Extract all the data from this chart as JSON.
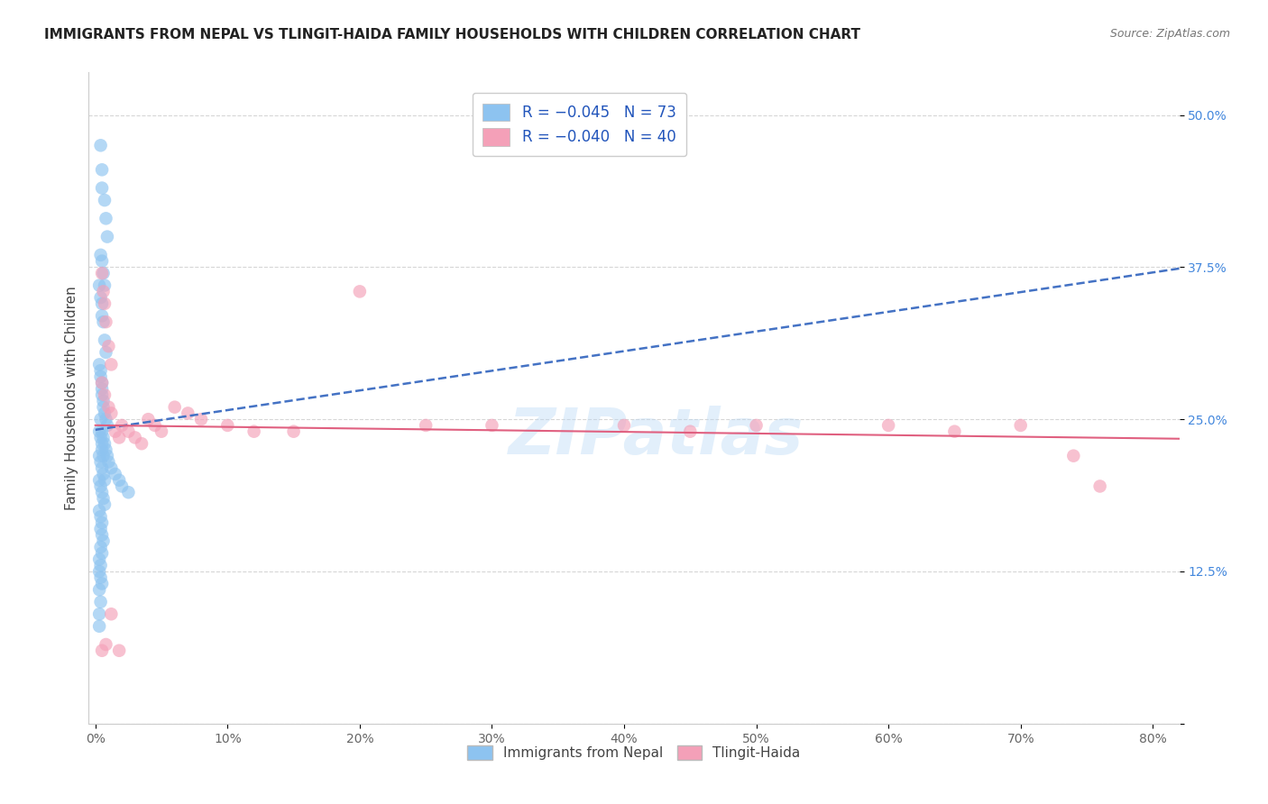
{
  "title": "IMMIGRANTS FROM NEPAL VS TLINGIT-HAIDA FAMILY HOUSEHOLDS WITH CHILDREN CORRELATION CHART",
  "source": "Source: ZipAtlas.com",
  "ylabel": "Family Households with Children",
  "ytick_labels": [
    "",
    "12.5%",
    "25.0%",
    "37.5%",
    "50.0%"
  ],
  "yticks": [
    0.0,
    0.125,
    0.25,
    0.375,
    0.5
  ],
  "xticks": [
    0.0,
    0.1,
    0.2,
    0.3,
    0.4,
    0.5,
    0.6,
    0.7,
    0.8
  ],
  "xlim": [
    -0.005,
    0.82
  ],
  "ylim": [
    0.0,
    0.535
  ],
  "series1_color": "#8dc3f0",
  "series2_color": "#f4a0b8",
  "trend1_color": "#4472c4",
  "trend2_color": "#e06080",
  "watermark": "ZIPatlas",
  "nepal_x": [
    0.004,
    0.005,
    0.005,
    0.007,
    0.008,
    0.009,
    0.004,
    0.005,
    0.006,
    0.007,
    0.003,
    0.004,
    0.005,
    0.005,
    0.006,
    0.007,
    0.008,
    0.003,
    0.004,
    0.004,
    0.005,
    0.005,
    0.005,
    0.006,
    0.006,
    0.007,
    0.008,
    0.009,
    0.003,
    0.004,
    0.005,
    0.005,
    0.006,
    0.003,
    0.004,
    0.005,
    0.006,
    0.007,
    0.003,
    0.004,
    0.005,
    0.006,
    0.007,
    0.003,
    0.004,
    0.005,
    0.004,
    0.005,
    0.006,
    0.004,
    0.005,
    0.003,
    0.004,
    0.003,
    0.004,
    0.005,
    0.003,
    0.004,
    0.003,
    0.003,
    0.004,
    0.005,
    0.006,
    0.007,
    0.008,
    0.009,
    0.01,
    0.012,
    0.015,
    0.018,
    0.02,
    0.025
  ],
  "nepal_y": [
    0.475,
    0.455,
    0.44,
    0.43,
    0.415,
    0.4,
    0.385,
    0.38,
    0.37,
    0.36,
    0.36,
    0.35,
    0.345,
    0.335,
    0.33,
    0.315,
    0.305,
    0.295,
    0.29,
    0.285,
    0.28,
    0.275,
    0.27,
    0.265,
    0.26,
    0.255,
    0.25,
    0.245,
    0.24,
    0.235,
    0.23,
    0.225,
    0.22,
    0.22,
    0.215,
    0.21,
    0.205,
    0.2,
    0.2,
    0.195,
    0.19,
    0.185,
    0.18,
    0.175,
    0.17,
    0.165,
    0.16,
    0.155,
    0.15,
    0.145,
    0.14,
    0.135,
    0.13,
    0.125,
    0.12,
    0.115,
    0.11,
    0.1,
    0.09,
    0.08,
    0.25,
    0.24,
    0.235,
    0.23,
    0.225,
    0.22,
    0.215,
    0.21,
    0.205,
    0.2,
    0.195,
    0.19
  ],
  "tlingit_x": [
    0.005,
    0.006,
    0.007,
    0.008,
    0.01,
    0.012,
    0.005,
    0.007,
    0.01,
    0.012,
    0.015,
    0.018,
    0.02,
    0.025,
    0.03,
    0.035,
    0.04,
    0.045,
    0.05,
    0.06,
    0.07,
    0.08,
    0.1,
    0.12,
    0.15,
    0.2,
    0.25,
    0.3,
    0.4,
    0.45,
    0.5,
    0.6,
    0.65,
    0.7,
    0.74,
    0.76,
    0.005,
    0.008,
    0.012,
    0.018
  ],
  "tlingit_y": [
    0.37,
    0.355,
    0.345,
    0.33,
    0.31,
    0.295,
    0.28,
    0.27,
    0.26,
    0.255,
    0.24,
    0.235,
    0.245,
    0.24,
    0.235,
    0.23,
    0.25,
    0.245,
    0.24,
    0.26,
    0.255,
    0.25,
    0.245,
    0.24,
    0.24,
    0.355,
    0.245,
    0.245,
    0.245,
    0.24,
    0.245,
    0.245,
    0.24,
    0.245,
    0.22,
    0.195,
    0.06,
    0.065,
    0.09,
    0.06
  ]
}
